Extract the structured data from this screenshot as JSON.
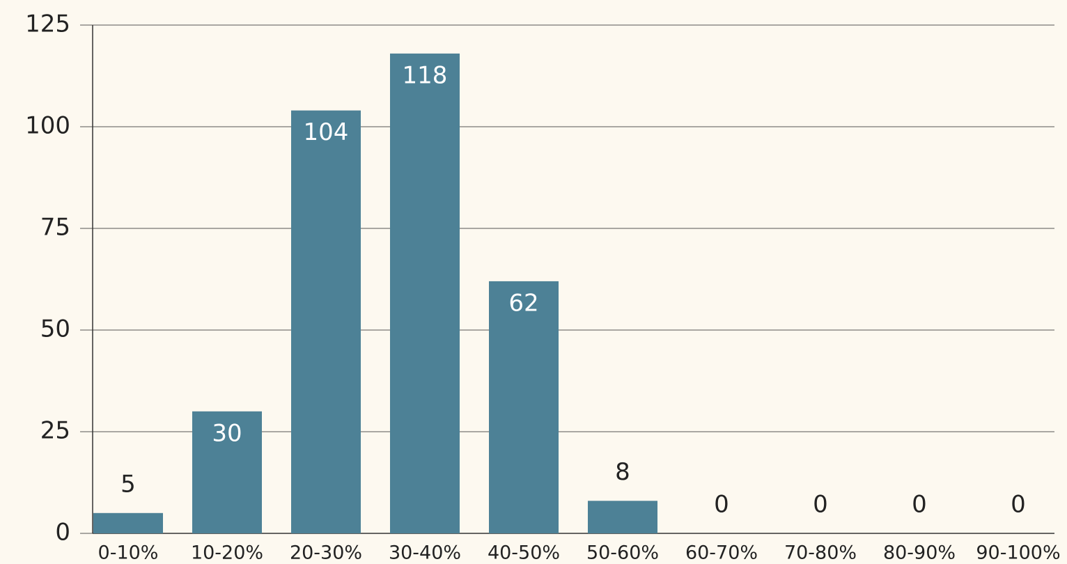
{
  "chart_data": {
    "type": "bar",
    "categories": [
      "0-10%",
      "10-20%",
      "20-30%",
      "30-40%",
      "40-50%",
      "50-60%",
      "60-70%",
      "70-80%",
      "80-90%",
      "90-100%"
    ],
    "values": [
      5,
      30,
      104,
      118,
      62,
      8,
      0,
      0,
      0,
      0
    ],
    "color": "#4d8196",
    "ylim": [
      0,
      125
    ],
    "yticks": [
      0,
      25,
      50,
      75,
      100,
      125
    ],
    "grid": true
  }
}
